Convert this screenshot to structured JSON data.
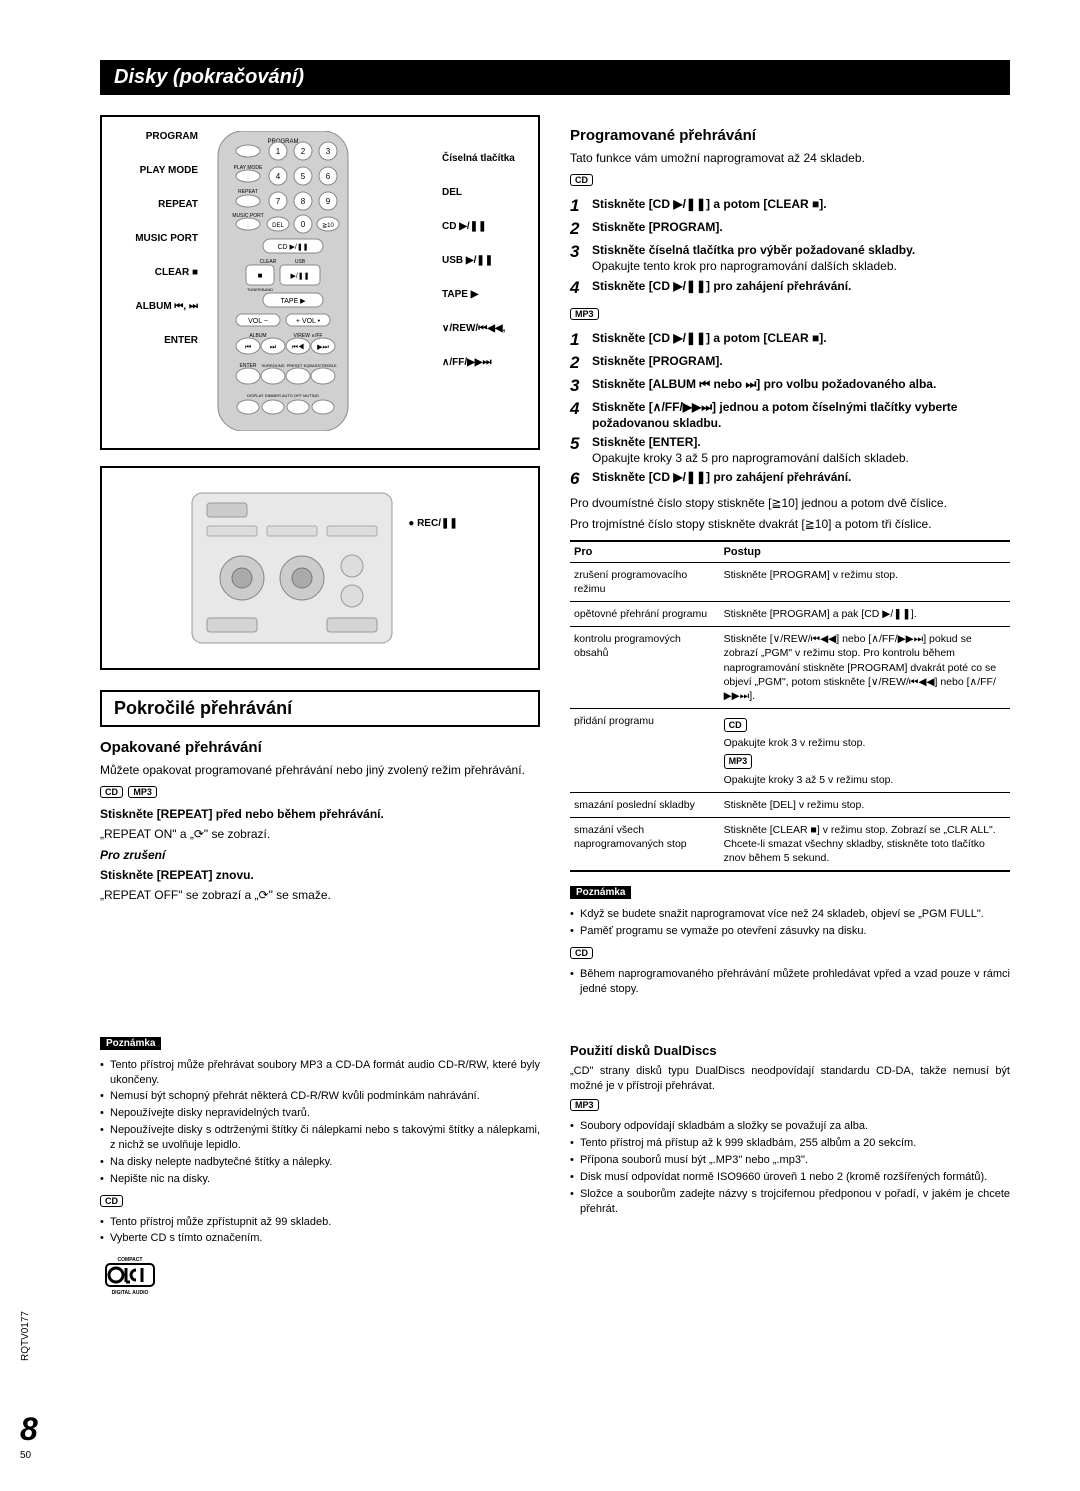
{
  "title": "Disky (pokračování)",
  "remoteLabels": {
    "left": [
      "PROGRAM",
      "PLAY MODE",
      "REPEAT",
      "MUSIC PORT",
      "CLEAR ■",
      "",
      "",
      "ALBUM ⏮, ⏭",
      "",
      "ENTER"
    ],
    "right": [
      "",
      "",
      "Číselná tlačítka",
      "DEL",
      "CD ▶/❚❚",
      "USB ▶/❚❚",
      "TAPE ▶",
      "∨/REW/⏮◀◀,",
      "∧/FF/▶▶⏭",
      ""
    ]
  },
  "recLabel": "● REC/❚❚",
  "advanced": {
    "header": "Pokročilé přehrávání",
    "repeat": {
      "title": "Opakované přehrávání",
      "intro": "Můžete opakovat programované přehrávání nebo jiný zvolený režim přehrávání.",
      "badges": [
        "CD",
        "MP3"
      ],
      "line1": "Stiskněte [REPEAT] před nebo během přehrávání.",
      "line2": "„REPEAT ON\" a „⟳\" se zobrazí.",
      "cancelTitle": "Pro zrušení",
      "line3": "Stiskněte [REPEAT] znovu.",
      "line4": "„REPEAT OFF\" se zobrazí a „⟳\" se smaže."
    }
  },
  "program": {
    "title": "Programované přehrávání",
    "intro": "Tato funkce vám umožní naprogramovat až 24 skladeb.",
    "badgeCD": "CD",
    "cdSteps": [
      {
        "n": "1",
        "t": "Stiskněte [CD ▶/❚❚] a potom [CLEAR ■]."
      },
      {
        "n": "2",
        "t": "Stiskněte [PROGRAM]."
      },
      {
        "n": "3",
        "t": "Stiskněte číselná tlačítka pro výběr požadované skladby.",
        "s": "Opakujte tento krok pro naprogramování dalších skladeb."
      },
      {
        "n": "4",
        "t": "Stiskněte [CD ▶/❚❚] pro zahájení přehrávání."
      }
    ],
    "badgeMP3": "MP3",
    "mp3Steps": [
      {
        "n": "1",
        "t": "Stiskněte [CD ▶/❚❚] a potom [CLEAR ■]."
      },
      {
        "n": "2",
        "t": "Stiskněte [PROGRAM]."
      },
      {
        "n": "3",
        "t": "Stiskněte [ALBUM ⏮ nebo ⏭] pro volbu požadovaného alba."
      },
      {
        "n": "4",
        "t": "Stiskněte [∧/FF/▶▶⏭] jednou a potom číselnými tlačítky vyberte požadovanou skladbu."
      },
      {
        "n": "5",
        "t": "Stiskněte [ENTER].",
        "s": "Opakujte kroky 3 až 5 pro naprogramování dalších skladeb."
      },
      {
        "n": "6",
        "t": "Stiskněte [CD ▶/❚❚] pro zahájení přehrávání."
      }
    ],
    "note2digit": "Pro dvoumístné číslo stopy stiskněte [≧10] jednou a potom dvě číslice.",
    "note3digit": "Pro trojmístné číslo stopy stiskněte dvakrát [≧10] a potom tři číslice.",
    "tableHeaders": [
      "Pro",
      "Postup"
    ],
    "tableRows": [
      {
        "a": "zrušení programovacího režimu",
        "b": "Stiskněte [PROGRAM] v režimu stop."
      },
      {
        "a": "opětovné přehrání programu",
        "b": "Stiskněte [PROGRAM] a pak [CD ▶/❚❚]."
      },
      {
        "a": "kontrolu programových obsahů",
        "b": "Stiskněte [∨/REW/⏮◀◀] nebo [∧/FF/▶▶⏭] pokud se zobrazí „PGM\" v režimu stop. Pro kontrolu během naprogramování stiskněte [PROGRAM] dvakrát poté co se objeví „PGM\", potom stiskněte [∨/REW/⏮◀◀] nebo [∧/FF/▶▶⏭]."
      },
      {
        "a": "přidání programu",
        "b": "",
        "cd": "Opakujte krok 3 v režimu stop.",
        "mp3": "Opakujte kroky 3 až 5 v režimu stop."
      },
      {
        "a": "smazání poslední skladby",
        "b": "Stiskněte [DEL] v režimu stop."
      },
      {
        "a": "smazání všech naprogramovaných stop",
        "b": "Stiskněte [CLEAR ■] v režimu stop. Zobrazí se „CLR ALL\". Chcete-li smazat všechny skladby, stiskněte toto tlačítko znov během 5 sekund."
      }
    ],
    "noteLabel": "Poznámka",
    "notes1": [
      "Když se budete snažit naprogramovat více než 24 skladeb, objeví se „PGM FULL\".",
      "Paměť programu se vymaže po otevření zásuvky na disku."
    ],
    "notes1cd": "Během naprogramovaného přehrávání můžete prohledávat vpřed a vzad pouze v rámci jedné stopy."
  },
  "bottomLeft": {
    "noteLabel": "Poznámka",
    "bullets": [
      "Tento přístroj může přehrávat soubory MP3 a CD-DA formát audio CD-R/RW, které byly ukončeny.",
      "Nemusí být schopný přehrát některá CD-R/RW kvůli podmínkám nahrávání.",
      "Nepoužívejte disky nepravidelných tvarů.",
      "Nepoužívejte disky s odtrženými štítky či nálepkami nebo s takovými štítky a nálepkami, z nichž se uvolňuje lepidlo.",
      "Na disky nelepte nadbytečné štítky a nálepky.",
      "Nepište nic na disky."
    ],
    "cdBadge": "CD",
    "cdBullets": [
      "Tento přístroj může zpřístupnit až 99 skladeb.",
      "Vyberte CD s tímto označením."
    ]
  },
  "bottomRight": {
    "title": "Použití disků DualDiscs",
    "intro": "„CD\" strany disků typu DualDiscs neodpovídají standardu CD-DA, takže nemusí být možné je v přístroji přehrávat.",
    "mp3Badge": "MP3",
    "bullets": [
      "Soubory odpovídají skladbám a složky se považují za alba.",
      "Tento přístroj má přístup až k 999 skladbám, 255 albům a 20 sekcím.",
      "Přípona souborů musí být „.MP3\" nebo „.mp3\".",
      "Disk musí odpovídat normě ISO9660 úroveň 1 nebo 2 (kromě rozšířených formátů).",
      "Složce a souborům zadejte názvy s trojcifernou předponou v pořadí, v jakém je chcete přehrát."
    ]
  },
  "pageNumBig": "8",
  "pageNumSmall": "50",
  "docCode": "RQTV0177"
}
